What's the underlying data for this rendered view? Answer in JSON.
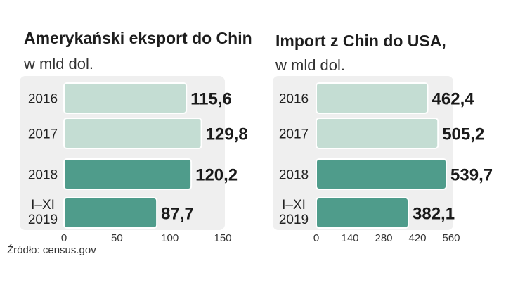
{
  "source": "Źródło: census.gov",
  "colors": {
    "panel": "#efefef",
    "bar_light": "#c4ddd3",
    "bar_dark": "#4f9c8b",
    "bar_stroke": "#ffffff"
  },
  "chart_data": [
    {
      "type": "bar",
      "orientation": "horizontal",
      "title": "Amerykański eksport do Chin",
      "subtitle": "w mld dol.",
      "categories": [
        "2016",
        "2017",
        "2018",
        [
          "I–XI",
          "2019"
        ]
      ],
      "values": [
        115.6,
        129.8,
        120.2,
        87.7
      ],
      "value_labels": [
        "115,6",
        "129,8",
        "120,2",
        "87,7"
      ],
      "highlight": [
        false,
        false,
        true,
        true
      ],
      "xlim": [
        0,
        150
      ],
      "xticks": [
        0,
        50,
        100,
        150
      ],
      "xticklabels": [
        "0",
        "50",
        "100",
        "150"
      ]
    },
    {
      "type": "bar",
      "orientation": "horizontal",
      "title": "Import z Chin do USA,",
      "subtitle": "w mld dol.",
      "categories": [
        "2016",
        "2017",
        "2018",
        [
          "I–XI",
          "2019"
        ]
      ],
      "values": [
        462.4,
        505.2,
        539.7,
        382.1
      ],
      "value_labels": [
        "462,4",
        "505,2",
        "539,7",
        "382,1"
      ],
      "highlight": [
        false,
        false,
        true,
        true
      ],
      "xlim": [
        0,
        560
      ],
      "xticks": [
        0,
        140,
        280,
        420,
        560
      ],
      "xticklabels": [
        "0",
        "140",
        "280",
        "420",
        "560"
      ]
    }
  ]
}
